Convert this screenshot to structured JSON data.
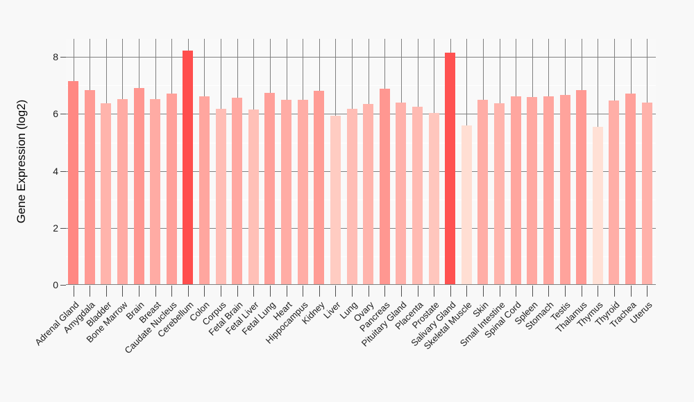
{
  "chart_data": {
    "type": "bar",
    "title": "",
    "xlabel": "",
    "ylabel": "Gene Expression (log2)",
    "ylim": [
      0,
      8.64
    ],
    "yticks": [
      0,
      2,
      4,
      6,
      8
    ],
    "minor_yticks": [
      1,
      3,
      5,
      7
    ],
    "legend": "none",
    "grid": {
      "vertical_category_lines": true,
      "horizontal_major_lines": true,
      "horizontal_minor_lines": true
    },
    "categories": [
      "Adrenal Gland",
      "Amygdala",
      "Bladder",
      "Bone Marrow",
      "Brain",
      "Breast",
      "Caudate Nucleus",
      "Cerebellum",
      "Colon",
      "Corpus",
      "Fetal Brain",
      "Fetal Liver",
      "Fetal Lung",
      "Heart",
      "Hippocampus",
      "Kidney",
      "Liver",
      "Lung",
      "Ovary",
      "Pancreas",
      "Pituitary Gland",
      "Placenta",
      "Prostate",
      "Salivary Gland",
      "Skeletal Muscle",
      "Skin",
      "Small Intestine",
      "Spinal Cord",
      "Spleen",
      "Stomach",
      "Testis",
      "Thalamus",
      "Thymus",
      "Thyroid",
      "Trachea",
      "Uterus"
    ],
    "values": [
      7.16,
      6.84,
      6.37,
      6.52,
      6.92,
      6.53,
      6.72,
      8.23,
      6.61,
      6.19,
      6.58,
      6.15,
      6.74,
      6.5,
      6.49,
      6.81,
      5.93,
      6.19,
      6.36,
      6.89,
      6.41,
      6.25,
      6.04,
      8.15,
      5.59,
      6.49,
      6.37,
      6.62,
      6.59,
      6.63,
      6.67,
      6.83,
      5.55,
      6.47,
      6.72,
      6.41
    ],
    "highlighted_categories": [
      "Cerebellum",
      "Salivary Gland"
    ],
    "highlight_color": "#fd4b4b",
    "color_scale": {
      "min_value": 5.5,
      "max_value": 8.25,
      "min_color": "#ffe3d8",
      "max_color": "#ff4d4c"
    }
  },
  "colors": {
    "page_bg": "#f8f8f8",
    "panel_bg": "#f9f9f9",
    "major_grid": "#808080",
    "minor_grid": "#ffffff",
    "axis_line": "#808080",
    "tick": "#4d4d4d",
    "text": "#1a1a1a"
  }
}
